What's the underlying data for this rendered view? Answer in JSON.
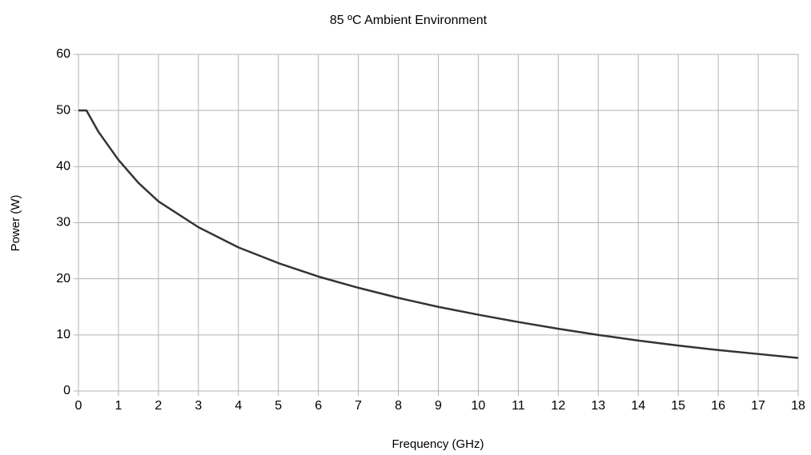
{
  "chart_data": {
    "type": "line",
    "title": "85 ºC Ambient Environment",
    "xlabel": "Frequency (GHz)",
    "ylabel": "Power (W)",
    "x": [
      0,
      0.2,
      0.5,
      1,
      1.5,
      2,
      3,
      4,
      5,
      6,
      7,
      8,
      9,
      10,
      11,
      12,
      13,
      14,
      15,
      16,
      17,
      18
    ],
    "series": [
      {
        "name": "Power",
        "color": "#333333",
        "values": [
          50,
          50,
          46.2,
          41.2,
          37.1,
          33.8,
          29.2,
          25.6,
          22.8,
          20.4,
          18.4,
          16.6,
          15.0,
          13.6,
          12.3,
          11.1,
          10.0,
          9.0,
          8.1,
          7.3,
          6.6,
          5.9
        ]
      }
    ],
    "xlim": [
      0,
      18
    ],
    "xticks": [
      0,
      1,
      2,
      3,
      4,
      5,
      6,
      7,
      8,
      9,
      10,
      11,
      12,
      13,
      14,
      15,
      16,
      17,
      18
    ],
    "ylim": [
      0,
      60
    ],
    "yticks": [
      0,
      10,
      20,
      30,
      40,
      50,
      60
    ],
    "grid": true
  }
}
